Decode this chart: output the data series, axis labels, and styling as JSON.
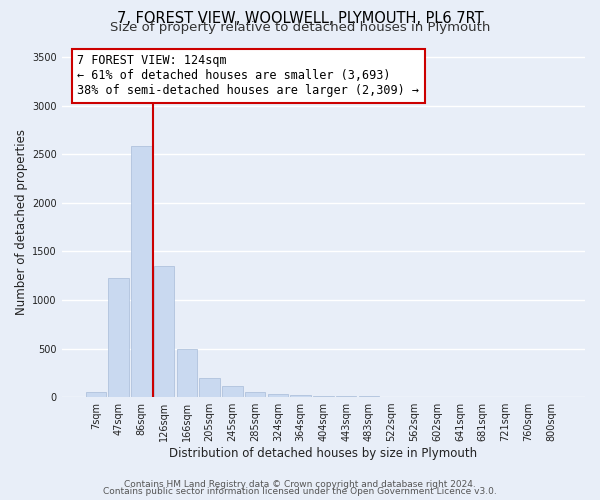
{
  "title1": "7, FOREST VIEW, WOOLWELL, PLYMOUTH, PL6 7RT",
  "title2": "Size of property relative to detached houses in Plymouth",
  "xlabel": "Distribution of detached houses by size in Plymouth",
  "ylabel": "Number of detached properties",
  "bar_labels": [
    "7sqm",
    "47sqm",
    "86sqm",
    "126sqm",
    "166sqm",
    "205sqm",
    "245sqm",
    "285sqm",
    "324sqm",
    "364sqm",
    "404sqm",
    "443sqm",
    "483sqm",
    "522sqm",
    "562sqm",
    "602sqm",
    "641sqm",
    "681sqm",
    "721sqm",
    "760sqm",
    "800sqm"
  ],
  "bar_values": [
    50,
    1230,
    2590,
    1350,
    500,
    200,
    110,
    50,
    35,
    20,
    15,
    10,
    10,
    0,
    0,
    0,
    0,
    0,
    0,
    0,
    0
  ],
  "bar_color": "#c9d9f0",
  "bar_edge_color": "#a8bcd8",
  "property_line_color": "#cc0000",
  "annotation_line1": "7 FOREST VIEW: 124sqm",
  "annotation_line2": "← 61% of detached houses are smaller (3,693)",
  "annotation_line3": "38% of semi-detached houses are larger (2,309) →",
  "annotation_box_color": "#ffffff",
  "annotation_box_edge_color": "#cc0000",
  "ylim": [
    0,
    3600
  ],
  "yticks": [
    0,
    500,
    1000,
    1500,
    2000,
    2500,
    3000,
    3500
  ],
  "footer1": "Contains HM Land Registry data © Crown copyright and database right 2024.",
  "footer2": "Contains public sector information licensed under the Open Government Licence v3.0.",
  "background_color": "#e8eef8",
  "plot_background_color": "#e8eef8",
  "grid_color": "#ffffff",
  "title1_fontsize": 10.5,
  "title2_fontsize": 9.5,
  "annotation_fontsize": 8.5,
  "axis_label_fontsize": 8.5,
  "tick_fontsize": 7,
  "footer_fontsize": 6.5
}
